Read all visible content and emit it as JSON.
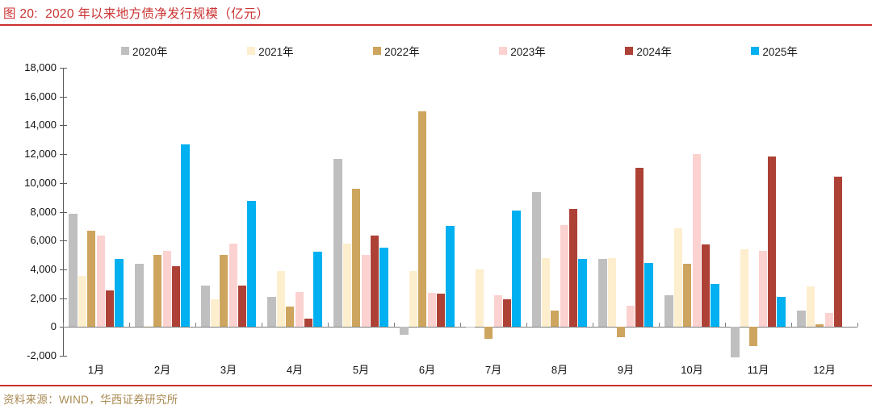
{
  "figure": {
    "title": "图 20:  2020 年以来地方债净发行规模（亿元）",
    "source": "资料来源：WIND，华西证券研究所"
  },
  "colors": {
    "title_red": "#cc3333",
    "rule_red": "#c9302c",
    "source_gold": "#a98a52",
    "axis_line": "#595959",
    "baseline": "#7f7f7f"
  },
  "chart_data": {
    "type": "bar",
    "title": "2020 年以来地方债净发行规模（亿元）",
    "xlabel": "",
    "ylabel": "",
    "categories": [
      "1月",
      "2月",
      "3月",
      "4月",
      "5月",
      "6月",
      "7月",
      "8月",
      "9月",
      "10月",
      "11月",
      "12月"
    ],
    "series": [
      {
        "name": "2020年",
        "color": "#bfbfbf",
        "values": [
          7850,
          4400,
          2900,
          2100,
          11650,
          -550,
          0,
          9350,
          4750,
          2200,
          -2100,
          1150
        ]
      },
      {
        "name": "2021年",
        "color": "#fdeecd",
        "values": [
          3550,
          100,
          1900,
          3900,
          5800,
          3900,
          4000,
          4800,
          4800,
          6850,
          5400,
          2800
        ]
      },
      {
        "name": "2022年",
        "color": "#cda55e",
        "values": [
          6700,
          5000,
          5000,
          1400,
          9600,
          15000,
          -800,
          1150,
          -700,
          4400,
          -1350,
          200
        ]
      },
      {
        "name": "2023年",
        "color": "#fcd2d0",
        "values": [
          6350,
          5300,
          5800,
          2400,
          5000,
          2350,
          2200,
          7100,
          1450,
          12000,
          5300,
          950
        ]
      },
      {
        "name": "2024年",
        "color": "#ad4136",
        "values": [
          2550,
          4200,
          2850,
          600,
          6350,
          2300,
          1900,
          8200,
          11050,
          5750,
          11850,
          10450
        ]
      },
      {
        "name": "2025年",
        "color": "#00b0f0",
        "values": [
          4700,
          12700,
          8750,
          5250,
          5500,
          7000,
          8100,
          4750,
          4450,
          3000,
          2100,
          null
        ]
      }
    ],
    "ylim": [
      -2000,
      18000
    ],
    "ytick_step": 2000,
    "ytick_labels": [
      "-2,000",
      "0",
      "2,000",
      "4,000",
      "6,000",
      "8,000",
      "10,000",
      "12,000",
      "14,000",
      "16,000",
      "18,000"
    ],
    "grid": false,
    "legend_position": "top"
  }
}
